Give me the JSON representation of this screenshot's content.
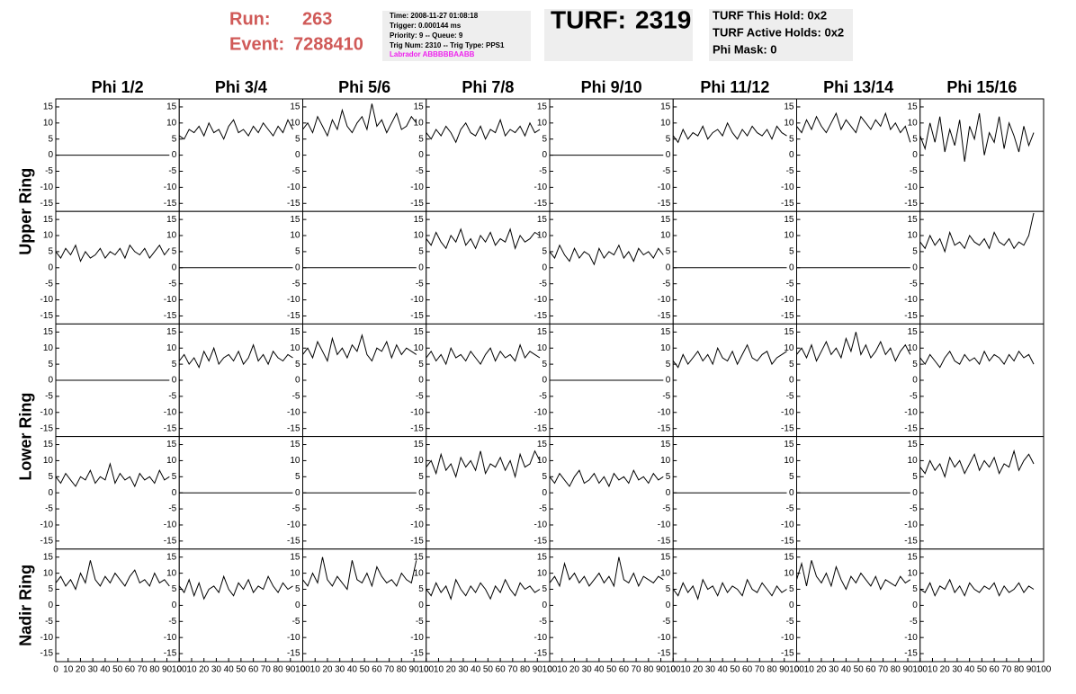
{
  "header": {
    "run_label": "Run:",
    "run": 263,
    "event_label": "Event:",
    "event": 7288410,
    "info": [
      "Time: 2008-11-27 01:08:18",
      "Trigger: 0.000144 ms",
      "Priority: 9 -- Queue: 9",
      "Trig Num: 2310 -- Trig Type: PPS1"
    ],
    "labrador": "Labrador ABBBBBAABB",
    "turf_label": "TURF:",
    "turf": 2319,
    "turf_info": [
      "TURF This Hold: 0x2",
      "TURF Active Holds: 0x2",
      "Phi Mask: 0"
    ]
  },
  "chart_data": {
    "type": "line",
    "color": "#000000",
    "columns": [
      "Phi 1/2",
      "Phi 3/4",
      "Phi 5/6",
      "Phi 7/8",
      "Phi 9/10",
      "Phi 11/12",
      "Phi 13/14",
      "Phi 15/16"
    ],
    "x": [
      0,
      4,
      8,
      12,
      16,
      20,
      24,
      28,
      32,
      36,
      40,
      44,
      48,
      52,
      56,
      60,
      64,
      68,
      72,
      76,
      80,
      84,
      88,
      92
    ],
    "xlim": [
      0,
      100
    ],
    "xticks": [
      0,
      10,
      20,
      30,
      40,
      50,
      60,
      70,
      80,
      90,
      100
    ],
    "ylim": [
      -17.5,
      17.5
    ],
    "yticks": [
      -15,
      -10,
      -5,
      0,
      5,
      10,
      15
    ],
    "rings": [
      {
        "name": "Upper Ring",
        "rows": [
          [
            [
              0,
              0,
              0,
              0,
              0,
              0,
              0,
              0,
              0,
              0,
              0,
              0,
              0,
              0,
              0,
              0,
              0,
              0,
              0,
              0,
              0,
              0,
              0,
              0
            ],
            [
              6,
              5,
              8,
              7,
              9,
              6,
              10,
              7,
              8,
              5,
              9,
              11,
              7,
              8,
              6,
              9,
              7,
              10,
              8,
              6,
              9,
              7,
              11,
              8
            ],
            [
              8,
              10,
              7,
              12,
              9,
              6,
              11,
              8,
              14,
              9,
              7,
              10,
              12,
              8,
              16,
              9,
              11,
              7,
              10,
              13,
              8,
              9,
              12,
              10
            ],
            [
              7,
              5,
              8,
              6,
              9,
              7,
              4,
              8,
              10,
              7,
              6,
              9,
              5,
              8,
              7,
              11,
              6,
              8,
              7,
              9,
              6,
              10,
              7,
              8
            ],
            [
              0,
              0,
              0,
              0,
              0,
              0,
              0,
              0,
              0,
              0,
              0,
              0,
              0,
              0,
              0,
              0,
              0,
              0,
              0,
              0,
              0,
              0,
              0,
              0
            ],
            [
              6,
              4,
              8,
              5,
              7,
              6,
              9,
              5,
              7,
              8,
              6,
              10,
              7,
              5,
              8,
              6,
              9,
              7,
              6,
              8,
              5,
              9,
              7,
              6
            ],
            [
              9,
              7,
              11,
              8,
              12,
              9,
              7,
              10,
              13,
              8,
              11,
              9,
              7,
              12,
              10,
              8,
              11,
              9,
              13,
              8,
              10,
              7,
              9,
              4
            ],
            [
              6,
              2,
              10,
              4,
              12,
              1,
              8,
              3,
              11,
              -2,
              9,
              5,
              13,
              0,
              7,
              4,
              12,
              2,
              10,
              6,
              1,
              9,
              3,
              7
            ]
          ],
          [
            [
              5,
              3,
              6,
              4,
              7,
              2,
              5,
              3,
              4,
              6,
              3,
              5,
              4,
              6,
              3,
              7,
              5,
              4,
              6,
              3,
              5,
              7,
              4,
              6
            ],
            [
              0,
              0,
              0,
              0,
              0,
              0,
              0,
              0,
              0,
              0,
              0,
              0,
              0,
              0,
              0,
              0,
              0,
              0,
              0,
              0,
              0,
              0,
              0,
              0
            ],
            [
              0,
              0,
              0,
              0,
              0,
              0,
              0,
              0,
              0,
              0,
              0,
              0,
              0,
              0,
              0,
              0,
              0,
              0,
              0,
              0,
              0,
              0,
              0,
              0
            ],
            [
              9,
              7,
              11,
              8,
              6,
              10,
              8,
              12,
              7,
              9,
              6,
              10,
              8,
              11,
              7,
              9,
              8,
              12,
              6,
              10,
              8,
              9,
              11,
              10
            ],
            [
              5,
              3,
              7,
              4,
              2,
              6,
              3,
              5,
              4,
              1,
              6,
              3,
              5,
              4,
              7,
              3,
              5,
              2,
              6,
              4,
              5,
              3,
              6,
              4
            ],
            [
              0,
              0,
              0,
              0,
              0,
              0,
              0,
              0,
              0,
              0,
              0,
              0,
              0,
              0,
              0,
              0,
              0,
              0,
              0,
              0,
              0,
              0,
              0,
              0
            ],
            [
              0,
              0,
              0,
              0,
              0,
              0,
              0,
              0,
              0,
              0,
              0,
              0,
              0,
              0,
              0,
              0,
              0,
              0,
              0,
              0,
              0,
              0,
              0,
              0
            ],
            [
              8,
              6,
              10,
              7,
              9,
              5,
              11,
              7,
              8,
              6,
              10,
              8,
              7,
              9,
              6,
              11,
              8,
              7,
              9,
              6,
              8,
              7,
              10,
              17
            ]
          ]
        ]
      },
      {
        "name": "Lower Ring",
        "rows": [
          [
            [
              0,
              0,
              0,
              0,
              0,
              0,
              0,
              0,
              0,
              0,
              0,
              0,
              0,
              0,
              0,
              0,
              0,
              0,
              0,
              0,
              0,
              0,
              0,
              0
            ],
            [
              6,
              8,
              5,
              7,
              4,
              9,
              6,
              10,
              5,
              7,
              8,
              6,
              9,
              5,
              7,
              11,
              6,
              8,
              5,
              9,
              7,
              6,
              8,
              7
            ],
            [
              8,
              10,
              7,
              12,
              9,
              6,
              13,
              8,
              10,
              7,
              11,
              9,
              14,
              8,
              6,
              10,
              9,
              12,
              7,
              11,
              8,
              10,
              9,
              8
            ],
            [
              7,
              9,
              6,
              8,
              5,
              10,
              7,
              8,
              6,
              9,
              7,
              5,
              8,
              10,
              6,
              9,
              7,
              8,
              6,
              11,
              7,
              9,
              8,
              7
            ],
            [
              0,
              0,
              0,
              0,
              0,
              0,
              0,
              0,
              0,
              0,
              0,
              0,
              0,
              0,
              0,
              0,
              0,
              0,
              0,
              0,
              0,
              0,
              0,
              0
            ],
            [
              6,
              4,
              8,
              5,
              7,
              9,
              6,
              8,
              5,
              10,
              7,
              6,
              9,
              5,
              8,
              11,
              7,
              6,
              8,
              9,
              5,
              7,
              8,
              9
            ],
            [
              8,
              10,
              7,
              11,
              6,
              9,
              12,
              8,
              10,
              7,
              13,
              9,
              15,
              8,
              11,
              7,
              9,
              12,
              8,
              10,
              6,
              9,
              11,
              8
            ],
            [
              7,
              5,
              8,
              6,
              4,
              7,
              9,
              6,
              5,
              8,
              6,
              7,
              5,
              9,
              6,
              8,
              7,
              5,
              8,
              6,
              9,
              7,
              8,
              5
            ]
          ],
          [
            [
              5,
              3,
              6,
              4,
              2,
              5,
              4,
              7,
              3,
              5,
              4,
              9,
              3,
              6,
              4,
              5,
              2,
              6,
              4,
              5,
              3,
              7,
              4,
              5
            ],
            [
              0,
              0,
              0,
              0,
              0,
              0,
              0,
              0,
              0,
              0,
              0,
              0,
              0,
              0,
              0,
              0,
              0,
              0,
              0,
              0,
              0,
              0,
              0,
              0
            ],
            [
              0,
              0,
              0,
              0,
              0,
              0,
              0,
              0,
              0,
              0,
              0,
              0,
              0,
              0,
              0,
              0,
              0,
              0,
              0,
              0,
              0,
              0,
              0,
              0
            ],
            [
              8,
              10,
              6,
              12,
              7,
              9,
              5,
              11,
              8,
              10,
              7,
              13,
              6,
              9,
              8,
              11,
              7,
              10,
              5,
              12,
              8,
              9,
              13,
              10
            ],
            [
              5,
              3,
              6,
              4,
              2,
              5,
              7,
              3,
              4,
              6,
              3,
              5,
              2,
              6,
              4,
              5,
              3,
              7,
              4,
              5,
              3,
              6,
              4,
              5
            ],
            [
              0,
              0,
              0,
              0,
              0,
              0,
              0,
              0,
              0,
              0,
              0,
              0,
              0,
              0,
              0,
              0,
              0,
              0,
              0,
              0,
              0,
              0,
              0,
              0
            ],
            [
              0,
              0,
              0,
              0,
              0,
              0,
              0,
              0,
              0,
              0,
              0,
              0,
              0,
              0,
              0,
              0,
              0,
              0,
              0,
              0,
              0,
              0,
              0,
              0
            ],
            [
              8,
              6,
              10,
              7,
              9,
              5,
              11,
              8,
              10,
              6,
              9,
              12,
              7,
              10,
              8,
              11,
              6,
              9,
              8,
              13,
              7,
              10,
              12,
              9
            ]
          ]
        ]
      },
      {
        "name": "Nadir Ring",
        "rows": [
          [
            [
              7,
              9,
              6,
              8,
              5,
              10,
              7,
              14,
              8,
              6,
              9,
              7,
              10,
              8,
              6,
              9,
              11,
              7,
              8,
              6,
              10,
              7,
              8,
              6
            ],
            [
              6,
              4,
              8,
              3,
              7,
              2,
              5,
              6,
              4,
              9,
              5,
              3,
              7,
              5,
              8,
              4,
              6,
              5,
              9,
              6,
              4,
              7,
              5,
              6
            ],
            [
              8,
              6,
              10,
              7,
              15,
              8,
              6,
              9,
              7,
              5,
              14,
              8,
              7,
              10,
              6,
              12,
              9,
              7,
              8,
              6,
              10,
              8,
              7,
              14
            ],
            [
              5,
              3,
              7,
              4,
              6,
              2,
              8,
              5,
              3,
              6,
              4,
              7,
              5,
              2,
              6,
              4,
              8,
              5,
              3,
              7,
              5,
              6,
              4,
              5
            ],
            [
              7,
              9,
              6,
              13,
              8,
              10,
              7,
              9,
              6,
              8,
              10,
              7,
              9,
              6,
              15,
              8,
              7,
              10,
              6,
              9,
              8,
              7,
              9,
              8
            ],
            [
              5,
              3,
              7,
              4,
              6,
              2,
              8,
              5,
              6,
              3,
              7,
              4,
              6,
              5,
              3,
              8,
              5,
              4,
              7,
              5,
              3,
              6,
              4,
              5
            ],
            [
              8,
              13,
              6,
              14,
              9,
              7,
              10,
              6,
              12,
              8,
              5,
              9,
              7,
              10,
              8,
              6,
              9,
              5,
              8,
              7,
              6,
              9,
              7,
              8
            ],
            [
              5,
              4,
              7,
              3,
              6,
              5,
              8,
              4,
              6,
              3,
              7,
              5,
              4,
              6,
              5,
              7,
              3,
              6,
              4,
              5,
              7,
              4,
              6,
              5
            ]
          ]
        ]
      }
    ]
  }
}
